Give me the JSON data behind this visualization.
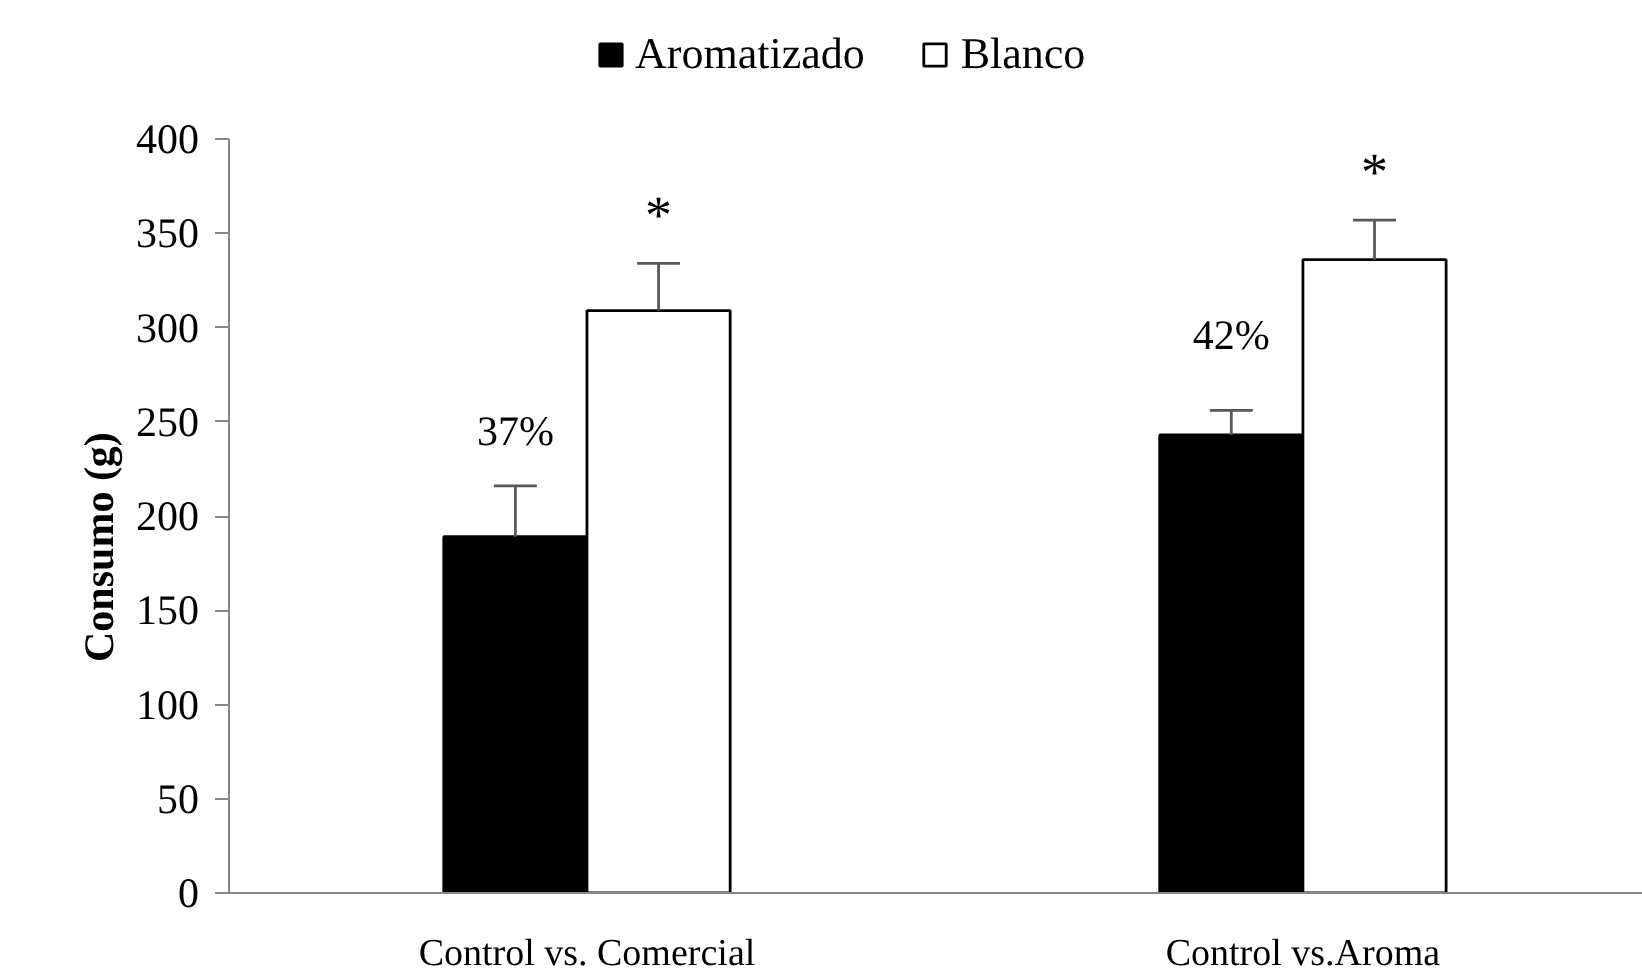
{
  "chart_data": {
    "type": "bar",
    "ylabel": "Consumo (g)",
    "categories": [
      "Control vs. Comercial",
      "Control vs.Aroma"
    ],
    "series": [
      {
        "name": "Aromatizado",
        "color": "#000000",
        "values": [
          189,
          243
        ],
        "errors": [
          [
            189,
            216
          ],
          [
            243,
            256
          ]
        ]
      },
      {
        "name": "Blanco",
        "color": "#ffffff",
        "values": [
          309,
          336
        ],
        "errors": [
          [
            309,
            334
          ],
          [
            336,
            357
          ]
        ]
      }
    ],
    "annotations": [
      {
        "text": "37%",
        "x": "Control vs. Comercial",
        "y": 245
      },
      {
        "text": "42%",
        "x": "Control vs.Aroma",
        "y": 296
      },
      "*",
      "*"
    ],
    "ylim": [
      0,
      400
    ],
    "yticks": [
      0,
      50,
      100,
      150,
      200,
      250,
      300,
      350,
      400
    ],
    "grid": false,
    "legend": "top"
  }
}
